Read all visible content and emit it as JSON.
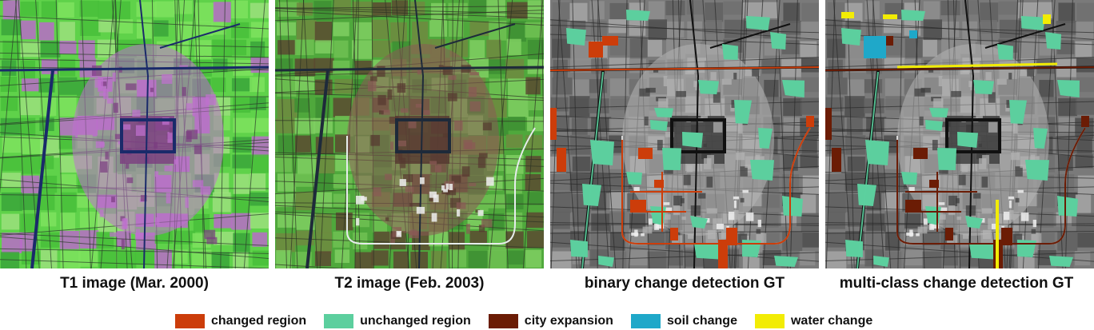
{
  "panels": [
    {
      "caption": "T1 image (Mar. 2000)",
      "kind": "t1"
    },
    {
      "caption": "T2 image (Feb. 2003)",
      "kind": "t2"
    },
    {
      "caption": "binary change detection GT",
      "kind": "binary"
    },
    {
      "caption": "multi-class change detection GT",
      "kind": "multi"
    }
  ],
  "legend": [
    {
      "label": "changed region",
      "color": "#cc3d0a"
    },
    {
      "label": "unchanged region",
      "color": "#5ccf9e"
    },
    {
      "label": "city expansion",
      "color": "#6b1c05"
    },
    {
      "label": "soil change",
      "color": "#1fa8c9"
    },
    {
      "label": "water change",
      "color": "#f2ec05"
    }
  ]
}
